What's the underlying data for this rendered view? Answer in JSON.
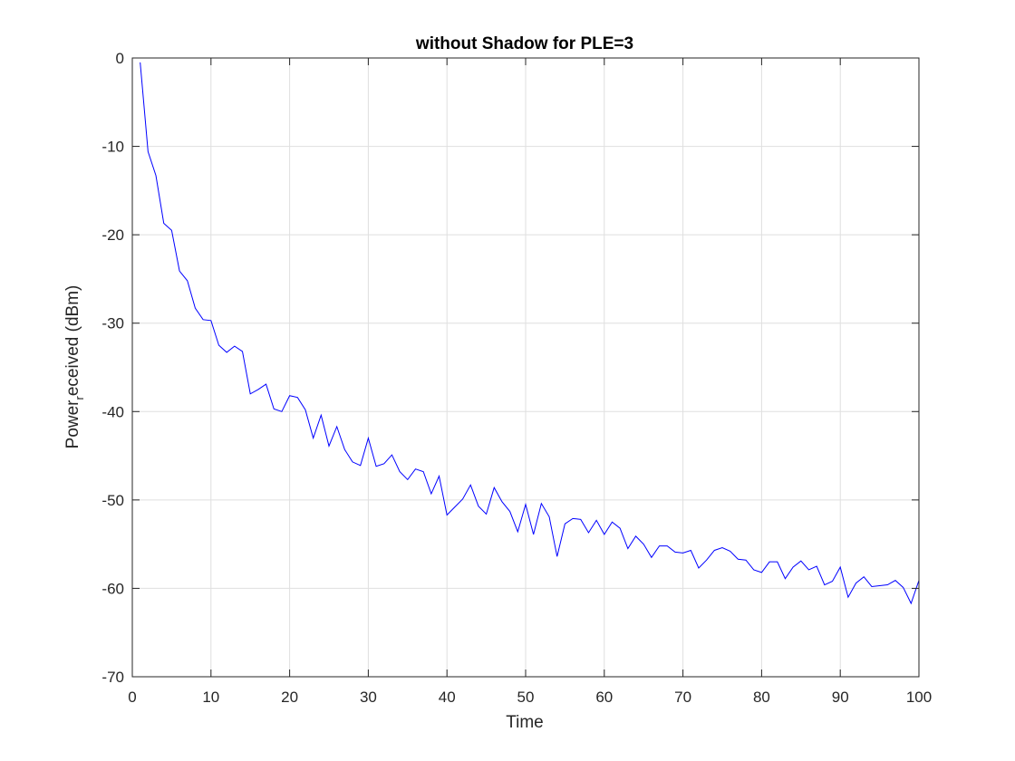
{
  "chart_data": {
    "type": "line",
    "title": "without Shadow for PLE=3",
    "xlabel": "Time",
    "ylabel_main": "Power",
    "ylabel_sub": "r",
    "ylabel_rest": "eceived (dBm)",
    "xlim": [
      0,
      100
    ],
    "ylim": [
      -70,
      0
    ],
    "xticks": [
      0,
      10,
      20,
      30,
      40,
      50,
      60,
      70,
      80,
      90,
      100
    ],
    "yticks": [
      0,
      -10,
      -20,
      -30,
      -40,
      -50,
      -60,
      -70
    ],
    "xtick_labels": [
      "0",
      "10",
      "20",
      "30",
      "40",
      "50",
      "60",
      "70",
      "80",
      "90",
      "100"
    ],
    "ytick_labels": [
      "0",
      "-10",
      "-20",
      "-30",
      "-40",
      "-50",
      "-60",
      "-70"
    ],
    "grid": true,
    "series": [
      {
        "color": "#0000ff",
        "x": [
          1,
          2,
          3,
          4,
          5,
          6,
          7,
          8,
          9,
          10,
          11,
          12,
          13,
          14,
          15,
          16,
          17,
          18,
          19,
          20,
          21,
          22,
          23,
          24,
          25,
          26,
          27,
          28,
          29,
          30,
          31,
          32,
          33,
          34,
          35,
          36,
          37,
          38,
          39,
          40,
          41,
          42,
          43,
          44,
          45,
          46,
          47,
          48,
          49,
          50,
          51,
          52,
          53,
          54,
          55,
          56,
          57,
          58,
          59,
          60,
          61,
          62,
          63,
          64,
          65,
          66,
          67,
          68,
          69,
          70,
          71,
          72,
          73,
          74,
          75,
          76,
          77,
          78,
          79,
          80,
          81,
          82,
          83,
          84,
          85,
          86,
          87,
          88,
          89,
          90,
          91,
          92,
          93,
          94,
          95,
          96,
          97,
          98,
          99,
          100
        ],
        "y": [
          -0.5,
          -10.6,
          -13.3,
          -18.7,
          -19.5,
          -24.1,
          -25.2,
          -28.3,
          -29.6,
          -29.7,
          -32.5,
          -33.3,
          -32.6,
          -33.2,
          -38.0,
          -37.5,
          -36.9,
          -39.7,
          -40.0,
          -38.2,
          -38.4,
          -39.8,
          -43.0,
          -40.4,
          -43.9,
          -41.7,
          -44.3,
          -45.7,
          -46.1,
          -43.0,
          -46.2,
          -45.9,
          -44.9,
          -46.8,
          -47.7,
          -46.5,
          -46.8,
          -49.3,
          -47.3,
          -51.7,
          -50.8,
          -49.9,
          -48.3,
          -50.7,
          -51.6,
          -48.6,
          -50.2,
          -51.3,
          -53.6,
          -50.5,
          -53.9,
          -50.4,
          -51.9,
          -56.4,
          -52.7,
          -52.1,
          -52.2,
          -53.7,
          -52.3,
          -53.9,
          -52.5,
          -53.2,
          -55.5,
          -54.1,
          -55.0,
          -56.5,
          -55.2,
          -55.2,
          -55.9,
          -56.0,
          -55.7,
          -57.7,
          -56.8,
          -55.7,
          -55.4,
          -55.8,
          -56.7,
          -56.8,
          -57.9,
          -58.2,
          -57.0,
          -57.0,
          -58.9,
          -57.6,
          -56.9,
          -57.9,
          -57.5,
          -59.6,
          -59.2,
          -57.6,
          -61.0,
          -59.4,
          -58.7,
          -59.8,
          -59.7,
          -59.6,
          -59.1,
          -59.9,
          -61.7,
          -59.1
        ]
      }
    ]
  }
}
